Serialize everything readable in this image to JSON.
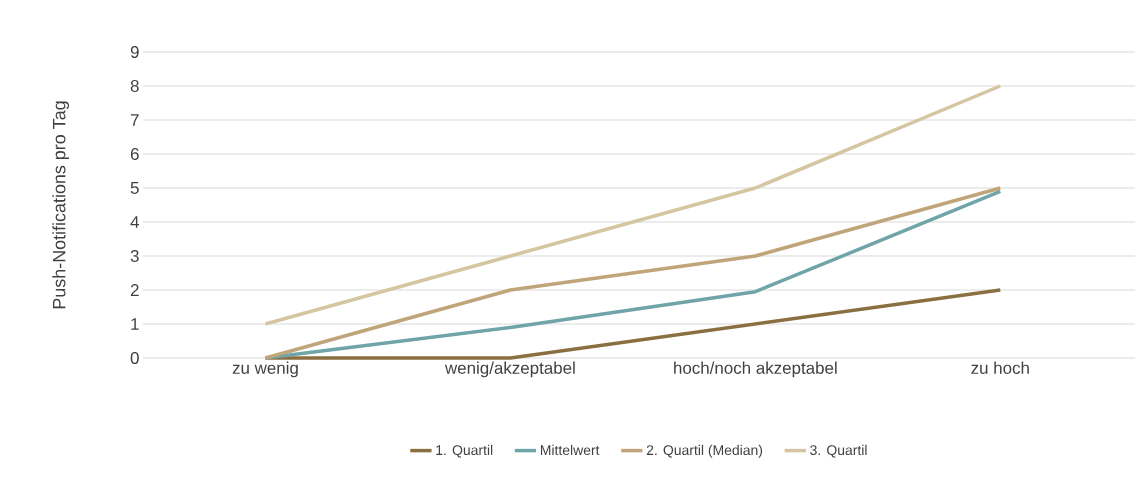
{
  "chart_data": {
    "type": "line",
    "ylabel": "Push-Notifications pro Tag",
    "categories": [
      "zu wenig",
      "wenig/akzeptabel",
      "hoch/noch akzeptabel",
      "zu hoch"
    ],
    "series": [
      {
        "name": "1. Quartil",
        "color": "#8a7041",
        "values": [
          0,
          0,
          1,
          2
        ]
      },
      {
        "name": "Mittelwert",
        "color": "#6fa4a8",
        "values": [
          0,
          0.9,
          1.95,
          4.9
        ]
      },
      {
        "name": "2. Quartil (Median)",
        "color": "#bfa579",
        "values": [
          0,
          2,
          3,
          5
        ]
      },
      {
        "name": "3. Quartil",
        "color": "#d5c6a2",
        "values": [
          1,
          3,
          5,
          8
        ]
      }
    ],
    "ylim": [
      0,
      9
    ],
    "yticks": [
      0,
      1,
      2,
      3,
      4,
      5,
      6,
      7,
      8,
      9
    ],
    "grid": "y",
    "legend": "bottom",
    "marker": "none",
    "line_style": "solid"
  }
}
